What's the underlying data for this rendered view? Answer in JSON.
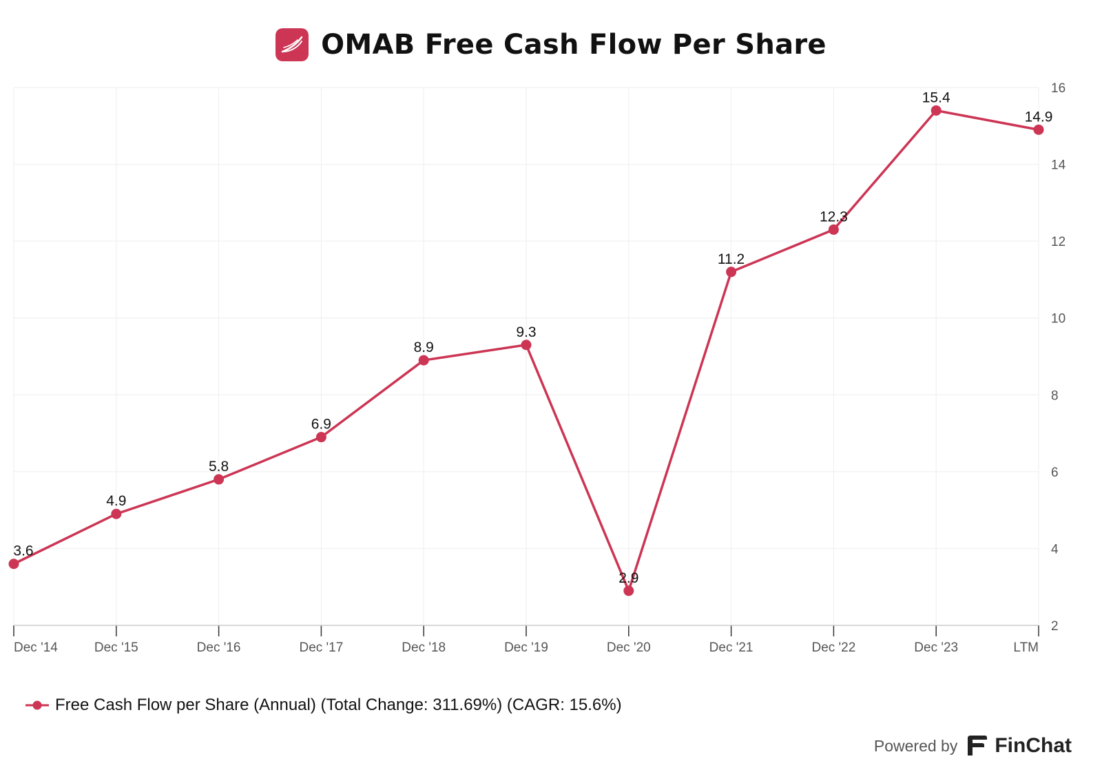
{
  "header": {
    "title": "OMAB Free Cash Flow Per Share",
    "logo_icon": "finchat-feather-logo-icon"
  },
  "legend": {
    "label": "Free Cash Flow per Share (Annual) (Total Change: 311.69%) (CAGR: 15.6%)"
  },
  "footer": {
    "powered_by": "Powered by",
    "brand": "FinChat",
    "brand_icon": "finchat-f-logo-icon"
  },
  "colors": {
    "series": "#cc3554",
    "grid": "#eeeeee",
    "axis": "#cccccc",
    "tick_text": "#555555"
  },
  "chart_data": {
    "type": "line",
    "title": "OMAB Free Cash Flow Per Share",
    "categories": [
      "Dec '14",
      "Dec '15",
      "Dec '16",
      "Dec '17",
      "Dec '18",
      "Dec '19",
      "Dec '20",
      "Dec '21",
      "Dec '22",
      "Dec '23",
      "LTM"
    ],
    "series": [
      {
        "name": "Free Cash Flow per Share (Annual) (Total Change: 311.69%) (CAGR: 15.6%)",
        "values": [
          3.6,
          4.9,
          5.8,
          6.9,
          8.9,
          9.3,
          2.9,
          11.2,
          12.3,
          15.4,
          14.9
        ],
        "labels": [
          "3.6",
          "4.9",
          "5.8",
          "6.9",
          "8.9",
          "9.3",
          "2.9",
          "11.2",
          "12.3",
          "15.4",
          "14.9"
        ]
      }
    ],
    "ylim": [
      2,
      16
    ],
    "yticks": [
      2,
      4,
      6,
      8,
      10,
      12,
      14,
      16
    ],
    "y_axis_side": "right",
    "grid": true,
    "legend_position": "bottom-left"
  }
}
